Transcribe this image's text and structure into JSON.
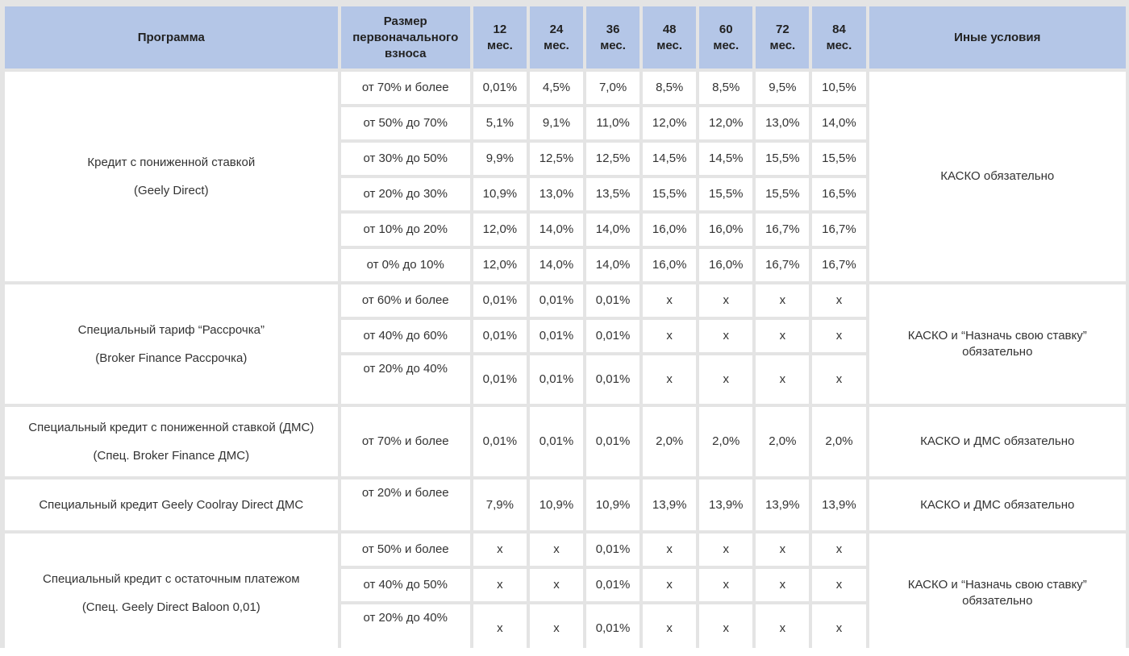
{
  "headers": {
    "program": "Программа",
    "downpayment_lines": [
      "Размер",
      "первоначального",
      "взноса"
    ],
    "terms": [
      {
        "n": "12",
        "u": "мес."
      },
      {
        "n": "24",
        "u": "мес."
      },
      {
        "n": "36",
        "u": "мес."
      },
      {
        "n": "48",
        "u": "мес."
      },
      {
        "n": "60",
        "u": "мес."
      },
      {
        "n": "72",
        "u": "мес."
      },
      {
        "n": "84",
        "u": "мес."
      }
    ],
    "other": "Иные условия"
  },
  "groups": [
    {
      "program": [
        "Кредит с пониженной ставкой",
        "(Geely Direct)"
      ],
      "conditions": [
        "КАСКО обязательно"
      ],
      "rows": [
        {
          "dp": "от 70% и более",
          "v": [
            "0,01%",
            "4,5%",
            "7,0%",
            "8,5%",
            "8,5%",
            "9,5%",
            "10,5%"
          ]
        },
        {
          "dp": "от 50% до 70%",
          "v": [
            "5,1%",
            "9,1%",
            "11,0%",
            "12,0%",
            "12,0%",
            "13,0%",
            "14,0%"
          ]
        },
        {
          "dp": "от 30% до 50%",
          "v": [
            "9,9%",
            "12,5%",
            "12,5%",
            "14,5%",
            "14,5%",
            "15,5%",
            "15,5%"
          ]
        },
        {
          "dp": "от 20% до 30%",
          "v": [
            "10,9%",
            "13,0%",
            "13,5%",
            "15,5%",
            "15,5%",
            "15,5%",
            "16,5%"
          ]
        },
        {
          "dp": "от 10% до 20%",
          "v": [
            "12,0%",
            "14,0%",
            "14,0%",
            "16,0%",
            "16,0%",
            "16,7%",
            "16,7%"
          ]
        },
        {
          "dp": "от 0% до 10%",
          "v": [
            "12,0%",
            "14,0%",
            "14,0%",
            "16,0%",
            "16,0%",
            "16,7%",
            "16,7%"
          ]
        }
      ]
    },
    {
      "program": [
        "Специальный тариф “Рассрочка”",
        "(Broker Finance Рассрочка)"
      ],
      "conditions": [
        "КАСКО и “Назначь свою ставку”",
        "обязательно"
      ],
      "rows": [
        {
          "dp": "от 60% и более",
          "v": [
            "0,01%",
            "0,01%",
            "0,01%",
            "x",
            "x",
            "x",
            "x"
          ]
        },
        {
          "dp": "от 40% до 60%",
          "v": [
            "0,01%",
            "0,01%",
            "0,01%",
            "x",
            "x",
            "x",
            "x"
          ]
        },
        {
          "dp": "от 20% до 40%",
          "v": [
            "0,01%",
            "0,01%",
            "0,01%",
            "x",
            "x",
            "x",
            "x"
          ]
        }
      ]
    },
    {
      "program": [
        "Специальный кредит с пониженной ставкой (ДМС)",
        "(Спец. Broker Finance ДМС)"
      ],
      "conditions": [
        "КАСКО и ДМС обязательно"
      ],
      "rows": [
        {
          "dp": "от 70% и более",
          "v": [
            "0,01%",
            "0,01%",
            "0,01%",
            "2,0%",
            "2,0%",
            "2,0%",
            "2,0%"
          ]
        }
      ]
    },
    {
      "program": [
        "Специальный кредит Geely Coolray Direct ДМС"
      ],
      "conditions": [
        "КАСКО и ДМС обязательно"
      ],
      "rows": [
        {
          "dp": "от 20% и более",
          "v": [
            "7,9%",
            "10,9%",
            "10,9%",
            "13,9%",
            "13,9%",
            "13,9%",
            "13,9%"
          ]
        }
      ]
    },
    {
      "program": [
        "Специальный кредит с остаточным платежом",
        "(Спец. Geely Direct Baloon 0,01)"
      ],
      "conditions": [
        "КАСКО и “Назначь свою ставку”",
        "обязательно"
      ],
      "rows": [
        {
          "dp": "от 50% и более",
          "v": [
            "x",
            "x",
            "0,01%",
            "x",
            "x",
            "x",
            "x"
          ]
        },
        {
          "dp": "от 40% до 50%",
          "v": [
            "x",
            "x",
            "0,01%",
            "x",
            "x",
            "x",
            "x"
          ]
        },
        {
          "dp": "от 20% до 40%",
          "v": [
            "x",
            "x",
            "0,01%",
            "x",
            "x",
            "x",
            "x"
          ]
        }
      ]
    }
  ]
}
